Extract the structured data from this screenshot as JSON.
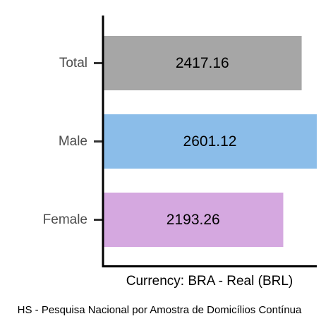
{
  "chart_data": {
    "type": "bar",
    "orientation": "horizontal",
    "categories": [
      "Total",
      "Male",
      "Female"
    ],
    "values": [
      2417.16,
      2601.12,
      2193.26
    ],
    "colors": [
      "#a6a6a6",
      "#8bbde9",
      "#d5a8e0"
    ],
    "xlabel": "Currency: BRA - Real (BRL)",
    "caption": "HS - Pesquisa Nacional por Amostra de Domicílios Contínua",
    "xlim": [
      0,
      2601.12
    ],
    "grid": false,
    "legend": "none"
  }
}
